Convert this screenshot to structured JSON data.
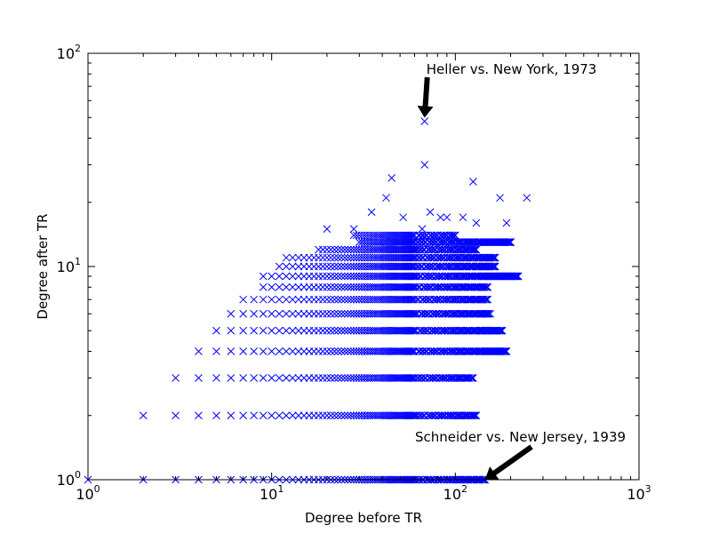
{
  "chart_data": {
    "type": "scatter",
    "title": "",
    "xlabel": "Degree before TR",
    "ylabel": "Degree after TR",
    "xscale": "log",
    "yscale": "log",
    "xlim": [
      1,
      1000
    ],
    "ylim": [
      1,
      100
    ],
    "grid": false,
    "marker": "x",
    "marker_color": "#0000ff",
    "x_ticks": [
      {
        "base": "10",
        "exp": "0",
        "value": 1
      },
      {
        "base": "10",
        "exp": "1",
        "value": 10
      },
      {
        "base": "10",
        "exp": "2",
        "value": 100
      },
      {
        "base": "10",
        "exp": "3",
        "value": 1000
      }
    ],
    "y_ticks": [
      {
        "base": "10",
        "exp": "0",
        "value": 1
      },
      {
        "base": "10",
        "exp": "1",
        "value": 10
      },
      {
        "base": "10",
        "exp": "2",
        "value": 100
      }
    ],
    "annotations": [
      {
        "text": "Heller vs. New York, 1973",
        "x": 68,
        "y": 48
      },
      {
        "text": "Schneider vs. New Jersey, 1939",
        "x": 145,
        "y": 1
      }
    ],
    "row_ranges": [
      {
        "y": 1,
        "x_min": 1,
        "x_max": 145
      },
      {
        "y": 2,
        "x_min": 2,
        "x_max": 130
      },
      {
        "y": 3,
        "x_min": 3,
        "x_max": 125
      },
      {
        "y": 4,
        "x_min": 4,
        "x_max": 190
      },
      {
        "y": 5,
        "x_min": 5,
        "x_max": 180
      },
      {
        "y": 6,
        "x_min": 6,
        "x_max": 155
      },
      {
        "y": 7,
        "x_min": 7,
        "x_max": 150
      },
      {
        "y": 8,
        "x_min": 9,
        "x_max": 150
      },
      {
        "y": 9,
        "x_min": 9,
        "x_max": 220
      },
      {
        "y": 10,
        "x_min": 11,
        "x_max": 165
      },
      {
        "y": 11,
        "x_min": 12,
        "x_max": 165
      },
      {
        "y": 12,
        "x_min": 18,
        "x_max": 130
      },
      {
        "y": 13,
        "x_min": 30,
        "x_max": 200
      },
      {
        "y": 14,
        "x_min": 28,
        "x_max": 100
      }
    ],
    "outliers": [
      {
        "x": 68,
        "y": 48
      },
      {
        "x": 68,
        "y": 30
      },
      {
        "x": 45,
        "y": 26
      },
      {
        "x": 125,
        "y": 25
      },
      {
        "x": 175,
        "y": 21
      },
      {
        "x": 245,
        "y": 21
      },
      {
        "x": 42,
        "y": 21
      },
      {
        "x": 35,
        "y": 18
      },
      {
        "x": 73,
        "y": 18
      },
      {
        "x": 83,
        "y": 17
      },
      {
        "x": 90,
        "y": 17
      },
      {
        "x": 110,
        "y": 17
      },
      {
        "x": 52,
        "y": 17
      },
      {
        "x": 130,
        "y": 16
      },
      {
        "x": 190,
        "y": 16
      },
      {
        "x": 20,
        "y": 15
      },
      {
        "x": 28,
        "y": 15
      },
      {
        "x": 66,
        "y": 15
      },
      {
        "x": 120,
        "y": 13
      },
      {
        "x": 135,
        "y": 13
      },
      {
        "x": 200,
        "y": 13
      },
      {
        "x": 160,
        "y": 11
      },
      {
        "x": 220,
        "y": 9
      }
    ]
  }
}
